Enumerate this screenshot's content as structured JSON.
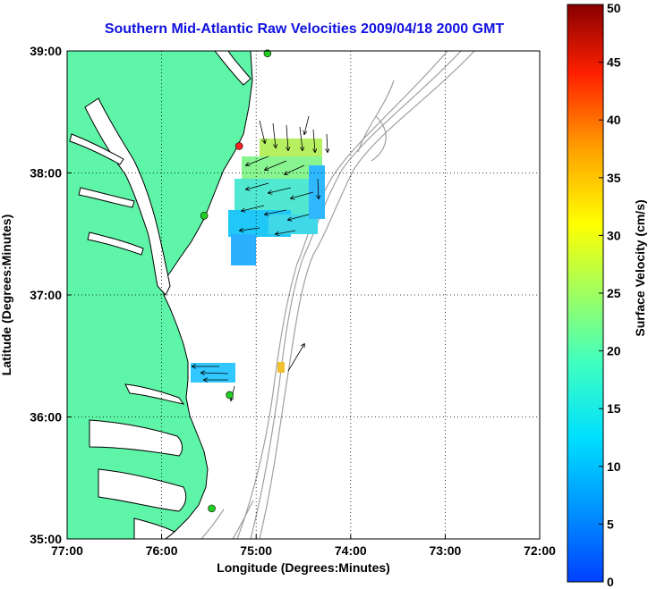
{
  "title": "Southern Mid-Atlantic Raw Velocities 2009/04/18 2000 GMT",
  "xaxis": {
    "label": "Longitude (Degrees:Minutes)",
    "ticks": [
      "77:00",
      "76:00",
      "75:00",
      "74:00",
      "73:00",
      "72:00"
    ]
  },
  "yaxis": {
    "label": "Latitude (Degrees:Minutes)",
    "ticks": [
      "39:00",
      "38:00",
      "37:00",
      "36:00",
      "35:00"
    ]
  },
  "colorbar": {
    "label": "Surface Velocity (cm/s)",
    "ticks": [
      "50",
      "45",
      "40",
      "35",
      "30",
      "25",
      "20",
      "15",
      "10",
      "5",
      "0"
    ],
    "min": 0,
    "max": 50,
    "colormap": "jet"
  },
  "colors": {
    "land": "#5ef5a8",
    "coastline": "#000000",
    "bathymetry": "#a0a0a0",
    "title": "#1010e0",
    "station_red": "#ff2020",
    "station_green": "#22cc22"
  },
  "chart_data": {
    "type": "map",
    "xlim": [
      -77,
      -72
    ],
    "ylim": [
      35,
      39
    ],
    "grid": true,
    "stations": [
      {
        "lon": -75.18,
        "lat": 38.22,
        "color": "red"
      },
      {
        "lon": -74.88,
        "lat": 38.98,
        "color": "green"
      },
      {
        "lon": -75.55,
        "lat": 37.65,
        "color": "green"
      },
      {
        "lon": -75.28,
        "lat": 36.18,
        "color": "green"
      },
      {
        "lon": -75.47,
        "lat": 35.25,
        "color": "green"
      }
    ]
  }
}
